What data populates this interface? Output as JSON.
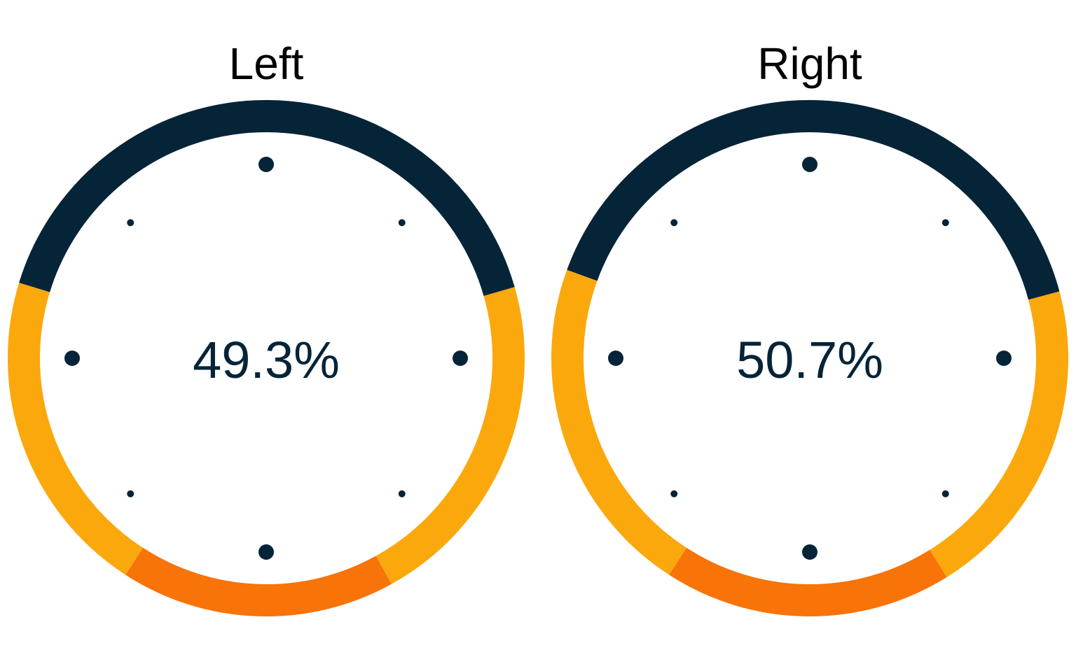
{
  "chart_data": [
    {
      "type": "gauge",
      "title": "Left",
      "value_label": "49.3%",
      "value": 49.3,
      "segments": [
        {
          "color": "#062438",
          "from_deg": 197,
          "to_deg": 344
        },
        {
          "color": "#FBA80D",
          "from_deg": 344,
          "to_deg": 421
        },
        {
          "color": "#F87308",
          "from_deg": 421,
          "to_deg": 483
        },
        {
          "color": "#FBA80D",
          "from_deg": 483,
          "to_deg": 557
        }
      ]
    },
    {
      "type": "gauge",
      "title": "Right",
      "value_label": "50.7%",
      "value": 50.7,
      "segments": [
        {
          "color": "#062438",
          "from_deg": 200,
          "to_deg": 345
        },
        {
          "color": "#FBA80D",
          "from_deg": 345,
          "to_deg": 418
        },
        {
          "color": "#F87308",
          "from_deg": 418,
          "to_deg": 483
        },
        {
          "color": "#FBA80D",
          "from_deg": 483,
          "to_deg": 560
        }
      ]
    }
  ],
  "colors": {
    "dark": "#062438",
    "yellow": "#FBA80D",
    "orange": "#F87308",
    "text": "#062438"
  }
}
